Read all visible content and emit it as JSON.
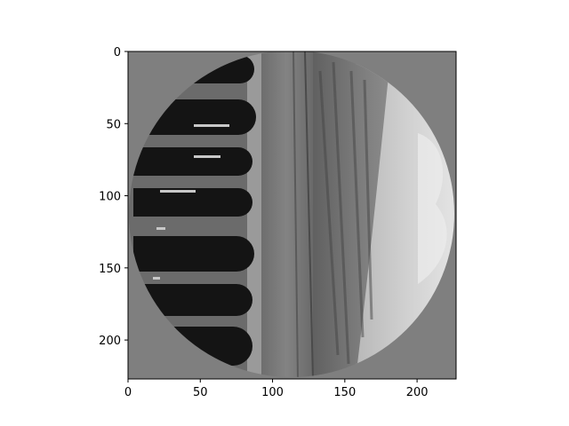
{
  "chart_data": {
    "type": "heatmap",
    "title": "",
    "xlabel": "",
    "ylabel": "",
    "xlim": [
      0,
      227
    ],
    "ylim": [
      227,
      0
    ],
    "x_ticks": [
      0,
      50,
      100,
      150,
      200
    ],
    "y_ticks": [
      0,
      50,
      100,
      150,
      200
    ],
    "colormap": "gray",
    "background_color": "#7f7f7f",
    "image_content": "grayscale photo rotated 90 degrees, cropped to a circle, of stone arches with a road and hillside under a cloudy sky",
    "grid": false
  }
}
